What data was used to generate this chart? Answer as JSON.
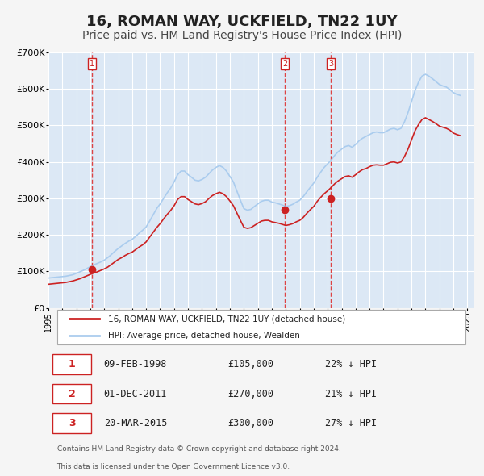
{
  "title": "16, ROMAN WAY, UCKFIELD, TN22 1UY",
  "subtitle": "Price paid vs. HM Land Registry's House Price Index (HPI)",
  "xlabel": "",
  "ylabel": "",
  "ylim": [
    0,
    700000
  ],
  "xlim_start": 1995.0,
  "xlim_end": 2025.5,
  "yticks": [
    0,
    100000,
    200000,
    300000,
    400000,
    500000,
    600000,
    700000
  ],
  "ytick_labels": [
    "£0",
    "£100K",
    "£200K",
    "£300K",
    "£400K",
    "£500K",
    "£600K",
    "£700K"
  ],
  "xticks": [
    1995,
    1996,
    1997,
    1998,
    1999,
    2000,
    2001,
    2002,
    2003,
    2004,
    2005,
    2006,
    2007,
    2008,
    2009,
    2010,
    2011,
    2012,
    2013,
    2014,
    2015,
    2016,
    2017,
    2018,
    2019,
    2020,
    2021,
    2022,
    2023,
    2024,
    2025
  ],
  "background_color": "#e8f0f8",
  "plot_bg_color": "#dce8f5",
  "grid_color": "#ffffff",
  "hpi_line_color": "#aaccee",
  "price_line_color": "#cc2222",
  "sale_dot_color": "#cc2222",
  "vline_color": "#dd4444",
  "sale_marker_color": "#cc1111",
  "title_fontsize": 13,
  "subtitle_fontsize": 10,
  "legend_label_price": "16, ROMAN WAY, UCKFIELD, TN22 1UY (detached house)",
  "legend_label_hpi": "HPI: Average price, detached house, Wealden",
  "transactions": [
    {
      "num": 1,
      "date": "09-FEB-1998",
      "price": 105000,
      "hpi_diff": "22% ↓ HPI",
      "year": 1998.12
    },
    {
      "num": 2,
      "date": "01-DEC-2011",
      "price": 270000,
      "hpi_diff": "21% ↓ HPI",
      "year": 2011.92
    },
    {
      "num": 3,
      "date": "20-MAR-2015",
      "price": 300000,
      "hpi_diff": "27% ↓ HPI",
      "year": 2015.22
    }
  ],
  "footnote1": "Contains HM Land Registry data © Crown copyright and database right 2024.",
  "footnote2": "This data is licensed under the Open Government Licence v3.0.",
  "hpi_data_x": [
    1995.0,
    1995.25,
    1995.5,
    1995.75,
    1996.0,
    1996.25,
    1996.5,
    1996.75,
    1997.0,
    1997.25,
    1997.5,
    1997.75,
    1998.0,
    1998.25,
    1998.5,
    1998.75,
    1999.0,
    1999.25,
    1999.5,
    1999.75,
    2000.0,
    2000.25,
    2000.5,
    2000.75,
    2001.0,
    2001.25,
    2001.5,
    2001.75,
    2002.0,
    2002.25,
    2002.5,
    2002.75,
    2003.0,
    2003.25,
    2003.5,
    2003.75,
    2004.0,
    2004.25,
    2004.5,
    2004.75,
    2005.0,
    2005.25,
    2005.5,
    2005.75,
    2006.0,
    2006.25,
    2006.5,
    2006.75,
    2007.0,
    2007.25,
    2007.5,
    2007.75,
    2008.0,
    2008.25,
    2008.5,
    2008.75,
    2009.0,
    2009.25,
    2009.5,
    2009.75,
    2010.0,
    2010.25,
    2010.5,
    2010.75,
    2011.0,
    2011.25,
    2011.5,
    2011.75,
    2012.0,
    2012.25,
    2012.5,
    2012.75,
    2013.0,
    2013.25,
    2013.5,
    2013.75,
    2014.0,
    2014.25,
    2014.5,
    2014.75,
    2015.0,
    2015.25,
    2015.5,
    2015.75,
    2016.0,
    2016.25,
    2016.5,
    2016.75,
    2017.0,
    2017.25,
    2017.5,
    2017.75,
    2018.0,
    2018.25,
    2018.5,
    2018.75,
    2019.0,
    2019.25,
    2019.5,
    2019.75,
    2020.0,
    2020.25,
    2020.5,
    2020.75,
    2021.0,
    2021.25,
    2021.5,
    2021.75,
    2022.0,
    2022.25,
    2022.5,
    2022.75,
    2023.0,
    2023.25,
    2023.5,
    2023.75,
    2024.0,
    2024.25,
    2024.5
  ],
  "hpi_data_y": [
    82000,
    83000,
    84000,
    85000,
    86000,
    87000,
    89000,
    91000,
    95000,
    99000,
    103000,
    108000,
    113000,
    118000,
    122000,
    126000,
    131000,
    138000,
    146000,
    155000,
    163000,
    170000,
    177000,
    183000,
    188000,
    196000,
    205000,
    213000,
    222000,
    238000,
    255000,
    272000,
    285000,
    300000,
    315000,
    328000,
    345000,
    365000,
    375000,
    375000,
    365000,
    358000,
    350000,
    348000,
    352000,
    358000,
    368000,
    378000,
    385000,
    390000,
    385000,
    375000,
    360000,
    345000,
    320000,
    295000,
    272000,
    268000,
    270000,
    278000,
    285000,
    292000,
    295000,
    295000,
    290000,
    288000,
    285000,
    282000,
    278000,
    280000,
    284000,
    290000,
    295000,
    305000,
    318000,
    330000,
    342000,
    358000,
    372000,
    385000,
    395000,
    405000,
    418000,
    428000,
    435000,
    442000,
    445000,
    440000,
    448000,
    458000,
    465000,
    470000,
    475000,
    480000,
    482000,
    480000,
    480000,
    485000,
    490000,
    492000,
    488000,
    492000,
    510000,
    535000,
    565000,
    595000,
    618000,
    635000,
    640000,
    635000,
    628000,
    620000,
    612000,
    608000,
    605000,
    598000,
    590000,
    585000,
    582000
  ],
  "price_data_x": [
    1995.0,
    1995.25,
    1995.5,
    1995.75,
    1996.0,
    1996.25,
    1996.5,
    1996.75,
    1997.0,
    1997.25,
    1997.5,
    1997.75,
    1998.0,
    1998.25,
    1998.5,
    1998.75,
    1999.0,
    1999.25,
    1999.5,
    1999.75,
    2000.0,
    2000.25,
    2000.5,
    2000.75,
    2001.0,
    2001.25,
    2001.5,
    2001.75,
    2002.0,
    2002.25,
    2002.5,
    2002.75,
    2003.0,
    2003.25,
    2003.5,
    2003.75,
    2004.0,
    2004.25,
    2004.5,
    2004.75,
    2005.0,
    2005.25,
    2005.5,
    2005.75,
    2006.0,
    2006.25,
    2006.5,
    2006.75,
    2007.0,
    2007.25,
    2007.5,
    2007.75,
    2008.0,
    2008.25,
    2008.5,
    2008.75,
    2009.0,
    2009.25,
    2009.5,
    2009.75,
    2010.0,
    2010.25,
    2010.5,
    2010.75,
    2011.0,
    2011.25,
    2011.5,
    2011.75,
    2012.0,
    2012.25,
    2012.5,
    2012.75,
    2013.0,
    2013.25,
    2013.5,
    2013.75,
    2014.0,
    2014.25,
    2014.5,
    2014.75,
    2015.0,
    2015.25,
    2015.5,
    2015.75,
    2016.0,
    2016.25,
    2016.5,
    2016.75,
    2017.0,
    2017.25,
    2017.5,
    2017.75,
    2018.0,
    2018.25,
    2018.5,
    2018.75,
    2019.0,
    2019.25,
    2019.5,
    2019.75,
    2020.0,
    2020.25,
    2020.5,
    2020.75,
    2021.0,
    2021.25,
    2021.5,
    2021.75,
    2022.0,
    2022.25,
    2022.5,
    2022.75,
    2023.0,
    2023.25,
    2023.5,
    2023.75,
    2024.0,
    2024.25,
    2024.5
  ],
  "price_data_y": [
    65000,
    66000,
    67000,
    68000,
    69000,
    70000,
    72000,
    74000,
    77000,
    80000,
    84000,
    88000,
    92000,
    96000,
    99000,
    103000,
    107000,
    112000,
    119000,
    126000,
    133000,
    138000,
    144000,
    149000,
    153000,
    160000,
    167000,
    173000,
    181000,
    194000,
    207000,
    220000,
    231000,
    244000,
    256000,
    267000,
    280000,
    297000,
    305000,
    305000,
    297000,
    291000,
    285000,
    283000,
    286000,
    291000,
    300000,
    308000,
    313000,
    317000,
    313000,
    305000,
    293000,
    280000,
    260000,
    240000,
    221000,
    218000,
    220000,
    226000,
    232000,
    238000,
    240000,
    240000,
    236000,
    234000,
    232000,
    229000,
    226000,
    228000,
    231000,
    236000,
    240000,
    248000,
    259000,
    269000,
    278000,
    292000,
    303000,
    313000,
    321000,
    330000,
    340000,
    348000,
    354000,
    360000,
    362000,
    358000,
    365000,
    373000,
    379000,
    382000,
    387000,
    391000,
    392000,
    391000,
    391000,
    395000,
    399000,
    400000,
    397000,
    400000,
    415000,
    435000,
    460000,
    485000,
    502000,
    516000,
    521000,
    516000,
    511000,
    505000,
    498000,
    495000,
    492000,
    487000,
    479000,
    475000,
    472000
  ]
}
